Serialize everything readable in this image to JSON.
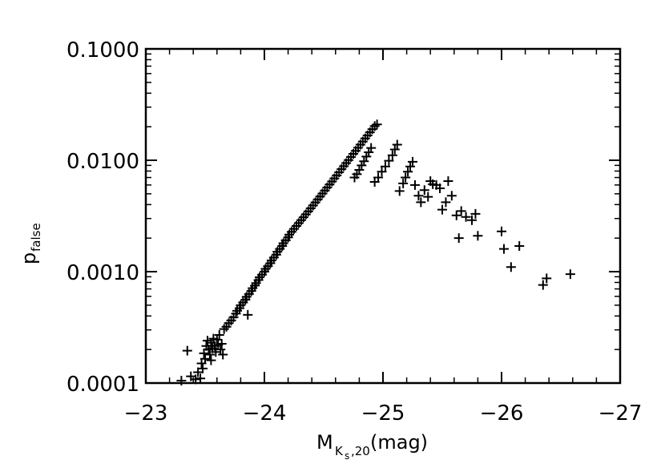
{
  "chart_data": {
    "type": "scatter",
    "marker": "plus",
    "marker_color": "#000000",
    "x_axis": {
      "label_main": "M",
      "label_sub": "K",
      "label_subsub": "s",
      "label_sub_suffix": ",20",
      "label_unit": " (mag)",
      "range": [
        -23,
        -27
      ],
      "reversed": true,
      "ticks": [
        -23,
        -24,
        -25,
        -26,
        -27
      ],
      "tick_labels": [
        "−23",
        "−24",
        "−25",
        "−26",
        "−27"
      ]
    },
    "y_axis": {
      "label_main": "p",
      "label_sub": "false",
      "scale": "log",
      "range": [
        0.0001,
        0.1
      ],
      "ticks": [
        0.0001,
        0.001,
        0.01,
        0.1
      ],
      "tick_labels": [
        "0.0001",
        "0.0010",
        "0.0100",
        "0.1000"
      ]
    },
    "grid": false,
    "series": [
      {
        "points": [
          [
            -23.3,
            0.000105
          ],
          [
            -23.38,
            0.000115
          ],
          [
            -23.35,
            0.000195
          ],
          [
            -23.42,
            0.000108
          ],
          [
            -23.44,
            0.000125
          ],
          [
            -23.46,
            0.00011
          ],
          [
            -23.48,
            0.000135
          ],
          [
            -23.47,
            0.00015
          ],
          [
            -23.5,
            0.000165
          ],
          [
            -23.49,
            0.000185
          ],
          [
            -23.51,
            0.000215
          ],
          [
            -23.52,
            0.00024
          ],
          [
            -23.53,
            0.0002
          ],
          [
            -23.54,
            0.00018
          ],
          [
            -23.55,
            0.00016
          ],
          [
            -23.55,
            0.00023
          ],
          [
            -23.56,
            0.000205
          ],
          [
            -23.57,
            0.00025
          ],
          [
            -23.58,
            0.000215
          ],
          [
            -23.59,
            0.00019
          ],
          [
            -23.6,
            0.000245
          ],
          [
            -23.61,
            0.00022
          ],
          [
            -23.62,
            0.00027
          ],
          [
            -23.63,
            0.0002
          ],
          [
            -23.64,
            0.000225
          ],
          [
            -23.65,
            0.00018
          ],
          [
            -23.66,
            0.000305
          ],
          [
            -23.68,
            0.00032
          ],
          [
            -23.7,
            0.000345
          ],
          [
            -23.72,
            0.000365
          ],
          [
            -23.74,
            0.00039
          ],
          [
            -23.76,
            0.00042
          ],
          [
            -23.77,
            0.000445
          ],
          [
            -23.79,
            0.00047
          ],
          [
            -23.8,
            0.0005
          ],
          [
            -23.82,
            0.00053
          ],
          [
            -23.84,
            0.00056
          ],
          [
            -23.85,
            0.000595
          ],
          [
            -23.86,
            0.00041
          ],
          [
            -23.87,
            0.00063
          ],
          [
            -23.89,
            0.00067
          ],
          [
            -23.9,
            0.00071
          ],
          [
            -23.92,
            0.00075
          ],
          [
            -23.93,
            0.00079
          ],
          [
            -23.95,
            0.00084
          ],
          [
            -23.96,
            0.00089
          ],
          [
            -23.98,
            0.00094
          ],
          [
            -24.0,
            0.001
          ],
          [
            -24.01,
            0.00106
          ],
          [
            -24.03,
            0.00112
          ],
          [
            -24.05,
            0.00119
          ],
          [
            -24.06,
            0.00126
          ],
          [
            -24.08,
            0.00134
          ],
          [
            -24.1,
            0.00142
          ],
          [
            -24.11,
            0.00151
          ],
          [
            -24.13,
            0.0016
          ],
          [
            -24.15,
            0.0017
          ],
          [
            -24.16,
            0.0018
          ],
          [
            -24.18,
            0.00191
          ],
          [
            -24.2,
            0.00203
          ],
          [
            -24.21,
            0.00215
          ],
          [
            -24.23,
            0.00228
          ],
          [
            -24.25,
            0.00242
          ],
          [
            -24.27,
            0.00257
          ],
          [
            -24.29,
            0.00273
          ],
          [
            -24.31,
            0.0029
          ],
          [
            -24.33,
            0.00308
          ],
          [
            -24.35,
            0.00327
          ],
          [
            -24.37,
            0.00348
          ],
          [
            -24.39,
            0.0037
          ],
          [
            -24.41,
            0.00393
          ],
          [
            -24.43,
            0.00418
          ],
          [
            -24.45,
            0.00445
          ],
          [
            -24.47,
            0.00473
          ],
          [
            -24.49,
            0.00503
          ],
          [
            -24.51,
            0.00535
          ],
          [
            -24.53,
            0.00569
          ],
          [
            -24.55,
            0.00606
          ],
          [
            -24.57,
            0.00645
          ],
          [
            -24.59,
            0.00687
          ],
          [
            -24.61,
            0.00732
          ],
          [
            -24.63,
            0.0078
          ],
          [
            -24.65,
            0.00831
          ],
          [
            -24.67,
            0.00885
          ],
          [
            -24.69,
            0.00943
          ],
          [
            -24.71,
            0.01005
          ],
          [
            -24.73,
            0.01071
          ],
          [
            -24.75,
            0.01141
          ],
          [
            -24.77,
            0.01216
          ],
          [
            -24.79,
            0.01296
          ],
          [
            -24.81,
            0.01381
          ],
          [
            -24.83,
            0.01472
          ],
          [
            -24.85,
            0.01569
          ],
          [
            -24.87,
            0.01672
          ],
          [
            -24.89,
            0.01782
          ],
          [
            -24.91,
            0.01899
          ],
          [
            -24.93,
            0.02024
          ],
          [
            -24.95,
            0.021
          ],
          [
            -24.76,
            0.007
          ],
          [
            -24.78,
            0.0075
          ],
          [
            -24.8,
            0.0082
          ],
          [
            -24.82,
            0.009
          ],
          [
            -24.84,
            0.0098
          ],
          [
            -24.86,
            0.0108
          ],
          [
            -24.88,
            0.0118
          ],
          [
            -24.9,
            0.0129
          ],
          [
            -24.93,
            0.0064
          ],
          [
            -24.96,
            0.007
          ],
          [
            -24.99,
            0.0079
          ],
          [
            -25.02,
            0.0088
          ],
          [
            -25.05,
            0.0099
          ],
          [
            -25.08,
            0.0111
          ],
          [
            -25.1,
            0.0125
          ],
          [
            -25.12,
            0.0138
          ],
          [
            -25.14,
            0.0053
          ],
          [
            -25.17,
            0.0062
          ],
          [
            -25.19,
            0.007
          ],
          [
            -25.21,
            0.0079
          ],
          [
            -25.23,
            0.0088
          ],
          [
            -25.25,
            0.0097
          ],
          [
            -25.27,
            0.006
          ],
          [
            -25.3,
            0.0048
          ],
          [
            -25.32,
            0.0042
          ],
          [
            -25.35,
            0.0054
          ],
          [
            -25.38,
            0.0047
          ],
          [
            -25.4,
            0.0065
          ],
          [
            -25.42,
            0.0061
          ],
          [
            -25.45,
            0.006
          ],
          [
            -25.48,
            0.0056
          ],
          [
            -25.5,
            0.0036
          ],
          [
            -25.53,
            0.0042
          ],
          [
            -25.55,
            0.0065
          ],
          [
            -25.58,
            0.0048
          ],
          [
            -25.62,
            0.0032
          ],
          [
            -25.64,
            0.002
          ],
          [
            -25.66,
            0.0035
          ],
          [
            -25.7,
            0.0031
          ],
          [
            -25.75,
            0.0029
          ],
          [
            -25.78,
            0.0033
          ],
          [
            -25.8,
            0.0021
          ],
          [
            -26.0,
            0.0023
          ],
          [
            -26.02,
            0.0016
          ],
          [
            -26.08,
            0.0011
          ],
          [
            -26.15,
            0.0017
          ],
          [
            -26.35,
            0.00076
          ],
          [
            -26.38,
            0.00087
          ],
          [
            -26.58,
            0.00095
          ]
        ]
      }
    ]
  }
}
